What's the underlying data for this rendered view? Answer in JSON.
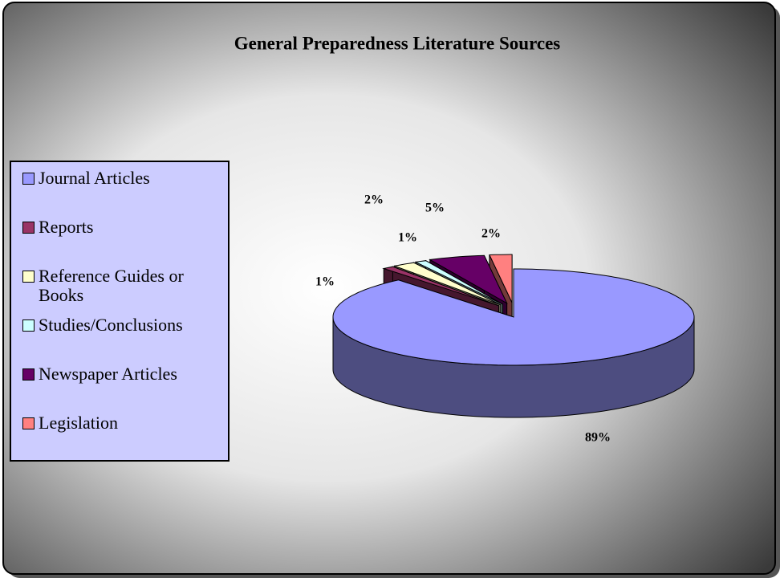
{
  "chart_data": {
    "type": "pie3d",
    "title": "General Preparedness Literature Sources",
    "categories": [
      "Journal Articles",
      "Reports",
      "Reference Guides or Books",
      "Studies/Conclusions",
      "Newspaper Articles",
      "Legislation"
    ],
    "values": [
      89,
      1,
      2,
      1,
      5,
      2
    ],
    "value_labels": [
      "89%",
      "1%",
      "2%",
      "1%",
      "5%",
      "2%"
    ],
    "colors": [
      "#9999ff",
      "#993366",
      "#ffffcc",
      "#ccffff",
      "#660066",
      "#ff8080"
    ],
    "legend": "left"
  }
}
